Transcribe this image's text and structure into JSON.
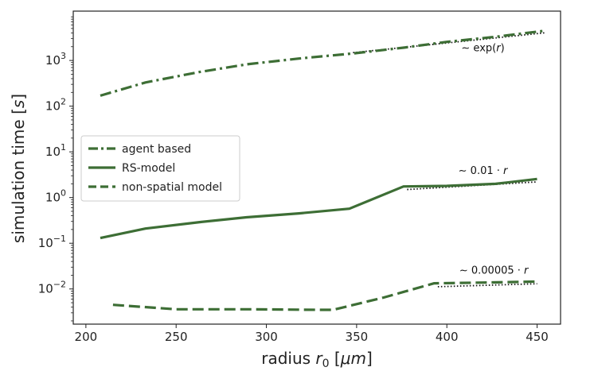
{
  "chart_data": {
    "type": "line",
    "xlabel": "radius r₀ [μm]",
    "ylabel": "simulation time [s]",
    "yscale": "log",
    "xlim": [
      193,
      463
    ],
    "ylim": [
      0.0017,
      12000
    ],
    "grid": false,
    "legend_position": "center-left",
    "x_ticks": [
      200,
      250,
      300,
      350,
      400,
      450
    ],
    "y_ticks": [
      {
        "value": 0.01,
        "base": "10",
        "exp": "−2"
      },
      {
        "value": 0.1,
        "base": "10",
        "exp": "−1"
      },
      {
        "value": 1,
        "base": "10",
        "exp": "0"
      },
      {
        "value": 10,
        "base": "10",
        "exp": "1"
      },
      {
        "value": 100,
        "base": "10",
        "exp": "2"
      },
      {
        "value": 1000,
        "base": "10",
        "exp": "3"
      }
    ],
    "series": [
      {
        "name": "agent based",
        "style": "dashdot",
        "color": "#3d6e35",
        "x": [
          208,
          233,
          263,
          289,
          318,
          348,
          376,
          400,
          427,
          455
        ],
        "y": [
          170,
          330,
          560,
          820,
          1100,
          1420,
          1900,
          2550,
          3300,
          4500
        ]
      },
      {
        "name": "RS-model",
        "style": "solid",
        "color": "#3d6e35",
        "x": [
          208,
          233,
          263,
          289,
          318,
          346,
          376,
          400,
          427,
          450
        ],
        "y": [
          0.13,
          0.21,
          0.29,
          0.37,
          0.45,
          0.57,
          1.75,
          1.8,
          2.0,
          2.55
        ]
      },
      {
        "name": "non-spatial model",
        "style": "dashed",
        "color": "#3d6e35",
        "x": [
          215,
          250,
          290,
          330,
          337,
          365,
          393,
          420,
          450
        ],
        "y": [
          0.0045,
          0.0036,
          0.0036,
          0.0035,
          0.0035,
          0.0065,
          0.0133,
          0.0138,
          0.0145
        ]
      }
    ],
    "fits": [
      {
        "label_prefix": "∼ exp(",
        "label_var": "r",
        "label_suffix": ")",
        "x": [
          348,
          455
        ],
        "y": [
          1480,
          4050
        ],
        "label_x": 420,
        "label_y": 1600
      },
      {
        "label_prefix": "∼ 0.01 · ",
        "label_var": "r",
        "label_suffix": "",
        "x": [
          378,
          450
        ],
        "y": [
          1.5,
          2.2
        ],
        "label_x": 420,
        "label_y": 3.3
      },
      {
        "label_prefix": "∼ 0.00005 · ",
        "label_var": "r",
        "label_suffix": "",
        "x": [
          395,
          450
        ],
        "y": [
          0.0112,
          0.013
        ],
        "label_x": 426,
        "label_y": 0.0215
      }
    ]
  }
}
